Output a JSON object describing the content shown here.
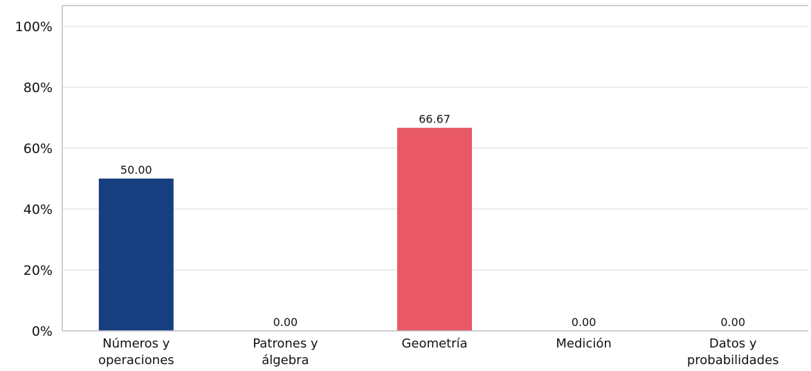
{
  "chart_data": {
    "type": "bar",
    "categories": [
      [
        "Números y",
        "operaciones"
      ],
      [
        "Patrones y",
        "álgebra"
      ],
      [
        "Geometría"
      ],
      [
        "Medición"
      ],
      [
        "Datos y",
        "probabilidades"
      ]
    ],
    "values": [
      50.0,
      0.0,
      66.67,
      0.0,
      0.0
    ],
    "data_labels": [
      "50.00",
      "0.00",
      "66.67",
      "0.00",
      "0.00"
    ],
    "bar_colors": [
      "#173f80",
      "#173f80",
      "#e85866",
      "#173f80",
      "#173f80"
    ],
    "ylim": [
      0,
      100
    ],
    "yticks": [
      0,
      20,
      40,
      60,
      80,
      100
    ],
    "ytick_labels": [
      "0%",
      "20%",
      "40%",
      "60%",
      "80%",
      "100%"
    ],
    "grid": true,
    "title": "",
    "xlabel": "",
    "ylabel": ""
  }
}
